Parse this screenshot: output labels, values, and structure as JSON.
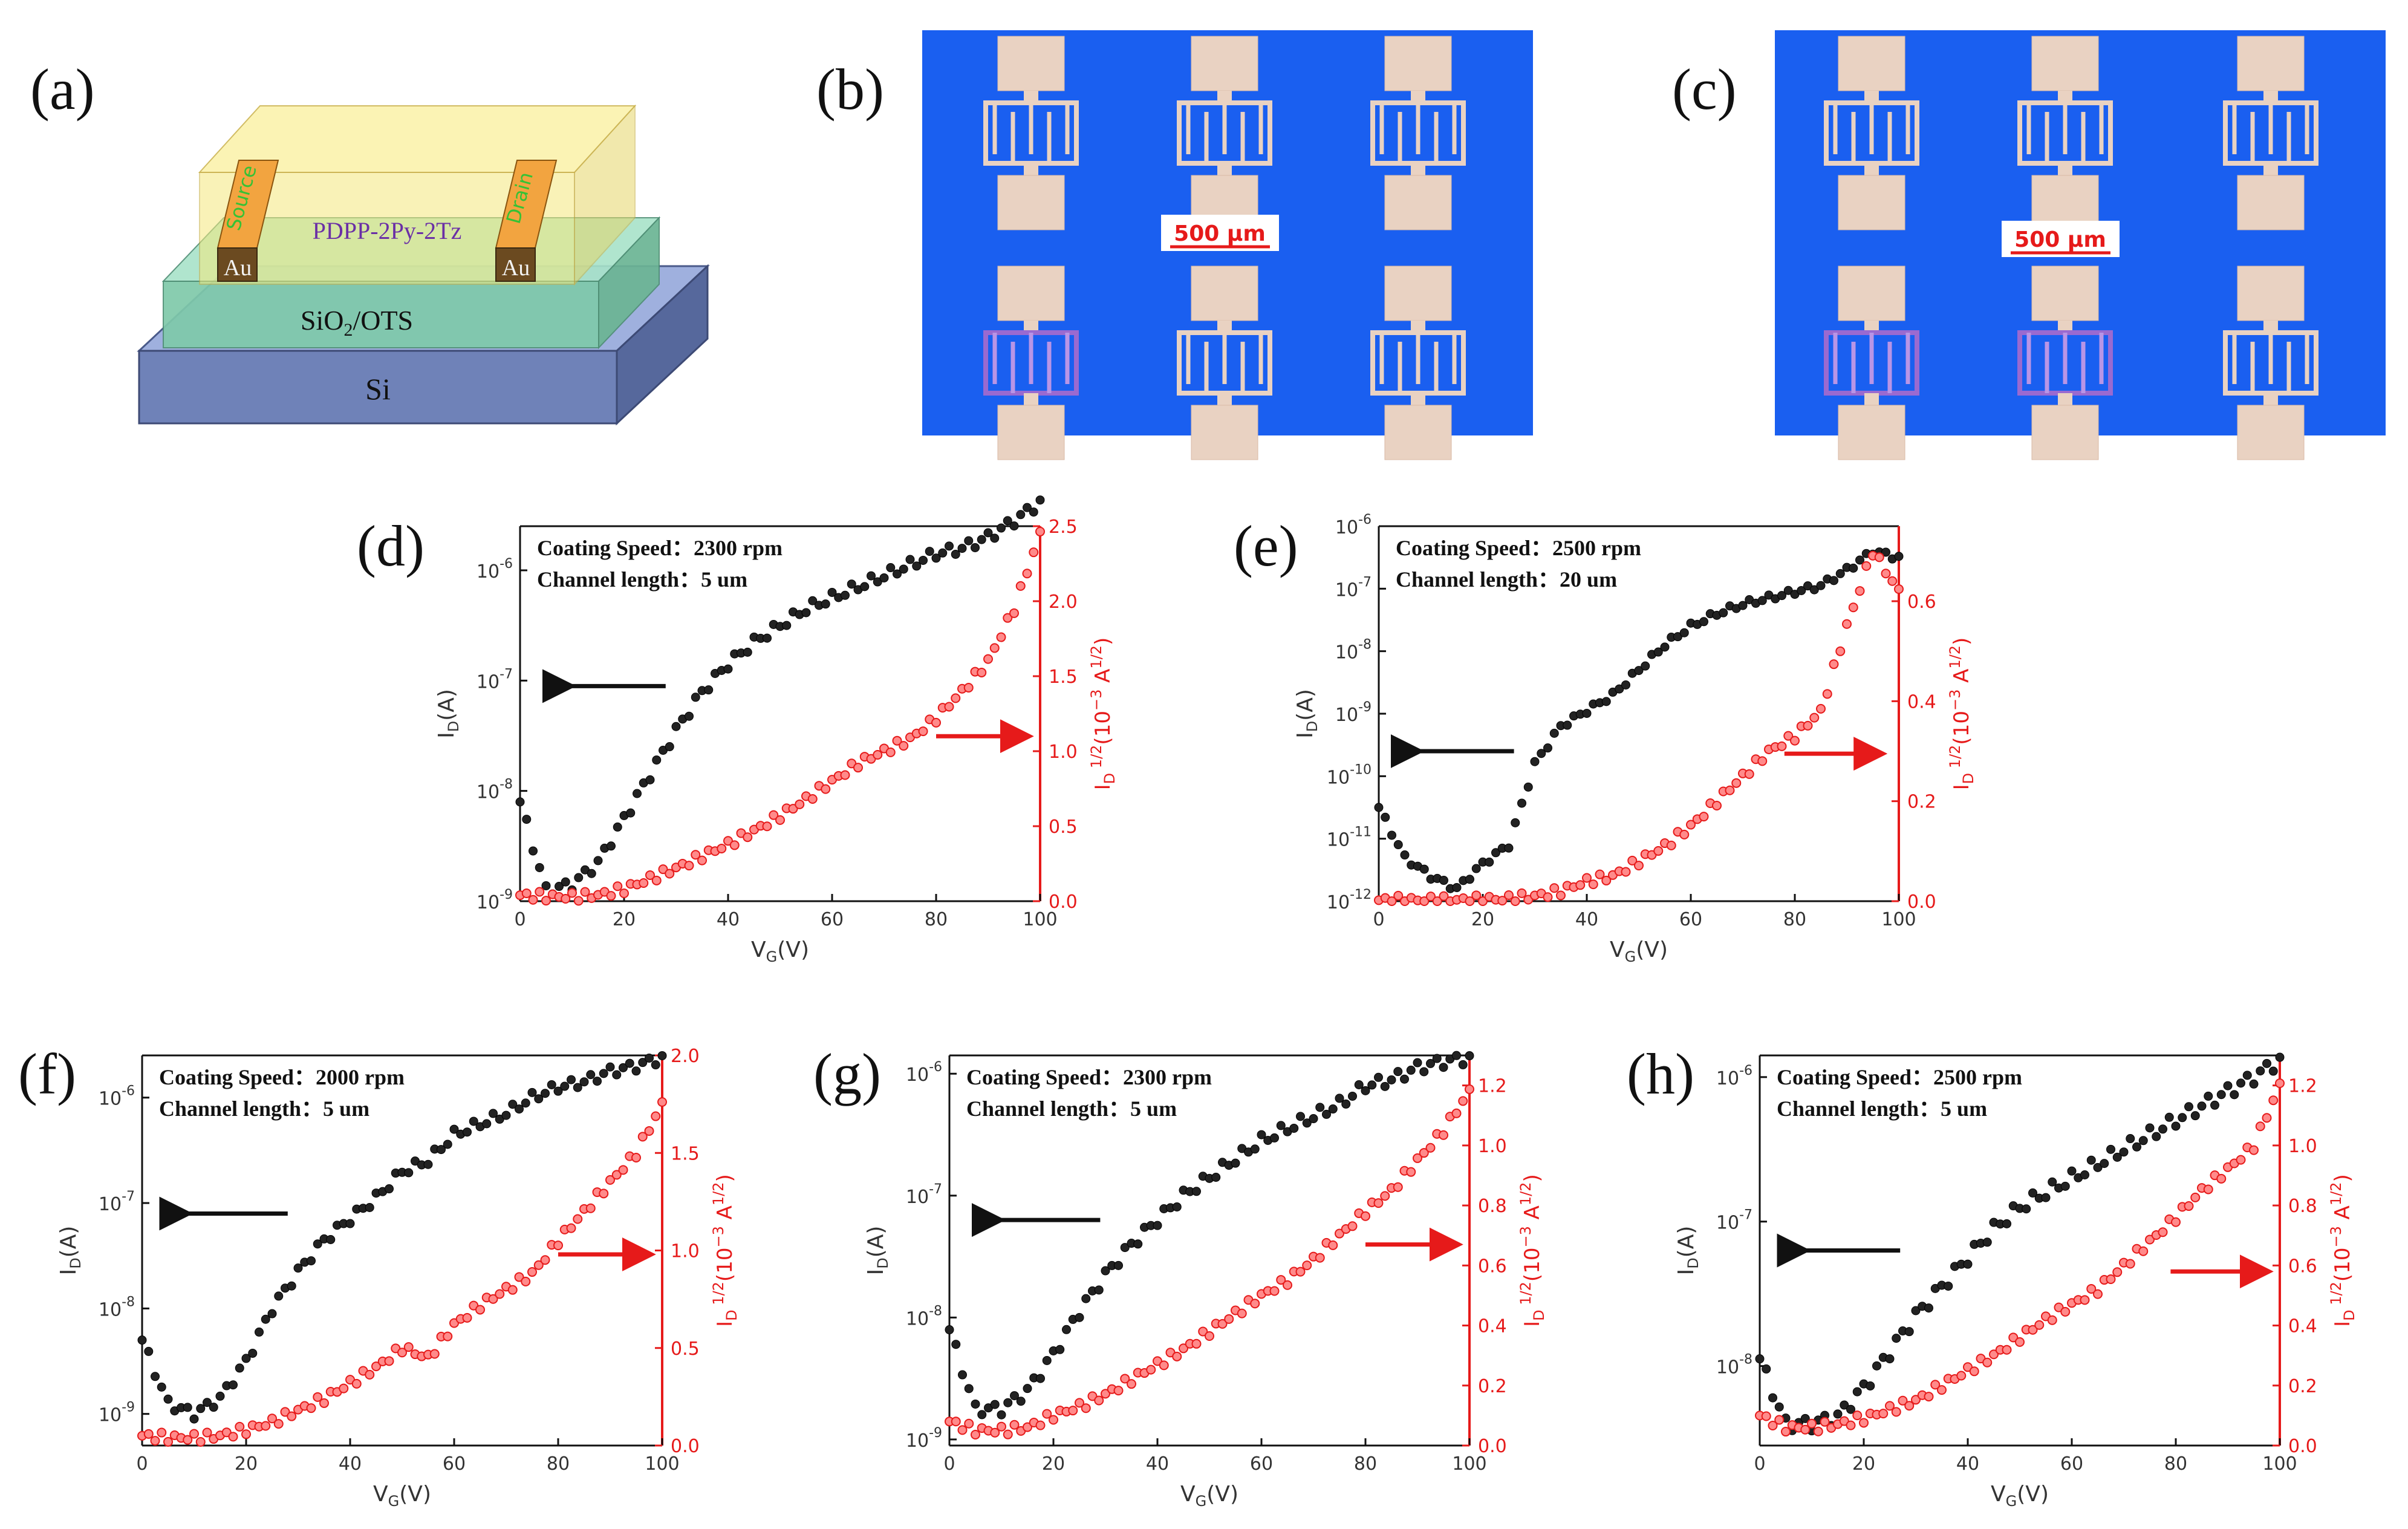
{
  "figure": {
    "panel_labels": [
      "(a)",
      "(b)",
      "(c)",
      "(d)",
      "(e)",
      "(f)",
      "(g)",
      "(h)"
    ]
  },
  "panel_a": {
    "layer_semiconductor": "PDPP-2Py-2Tz",
    "layer_dielectric_main": "SiO",
    "layer_dielectric_sub": "2",
    "layer_dielectric_tail": "/OTS",
    "layer_substrate": "Si",
    "electrode_left": "Source",
    "electrode_right": "Drain",
    "electrode_material_left": "Au",
    "electrode_material_right": "Au",
    "colors": {
      "semiconductor": "#f7e88a",
      "dielectric": "#8fd3b8",
      "substrate": "#7f93c9",
      "gold": "#d88a20"
    }
  },
  "panel_b": {
    "scale_bar": "500 μm",
    "background": "#1a5ff0"
  },
  "panel_c": {
    "scale_bar": "500 μm",
    "background": "#1a5ff0"
  },
  "chart_data": [
    {
      "id": "d",
      "type": "scatter",
      "annotation_line1": "Coating Speed：2300 rpm",
      "annotation_line2": "Channel length：5 um",
      "xlabel": "V_G(V)",
      "ylabel_left": "I_D(A)",
      "ylabel_right": "I_D^1/2(10^-3 A^1/2)",
      "xlim": [
        0,
        100
      ],
      "xticks": [
        0,
        20,
        40,
        60,
        80,
        100
      ],
      "ylim_left_log": [
        -9,
        -5.6
      ],
      "yticks_left": [
        -9,
        -8,
        -7,
        -6
      ],
      "ylim_right": [
        0,
        2.5
      ],
      "yticks_right": [
        0.0,
        0.5,
        1.0,
        1.5,
        2.0,
        2.5
      ],
      "left_series": {
        "name": "I_D",
        "color": "#111111",
        "x": [
          0,
          5,
          10,
          15,
          20,
          25,
          30,
          35,
          40,
          45,
          50,
          55,
          60,
          65,
          70,
          75,
          80,
          85,
          90,
          95,
          100
        ],
        "y_log10": [
          -8.1,
          -8.9,
          -8.85,
          -8.65,
          -8.25,
          -7.85,
          -7.45,
          -7.1,
          -6.85,
          -6.65,
          -6.5,
          -6.35,
          -6.25,
          -6.15,
          -6.05,
          -5.95,
          -5.85,
          -5.8,
          -5.7,
          -5.55,
          -5.38
        ]
      },
      "right_series": {
        "name": "I_D^1/2",
        "color": "#e61a1a",
        "x": [
          0,
          5,
          10,
          15,
          20,
          25,
          30,
          35,
          40,
          45,
          50,
          55,
          60,
          65,
          70,
          75,
          80,
          85,
          90,
          95,
          100
        ],
        "y": [
          0.04,
          0.03,
          0.03,
          0.04,
          0.08,
          0.15,
          0.22,
          0.3,
          0.38,
          0.47,
          0.57,
          0.68,
          0.8,
          0.92,
          1.0,
          1.08,
          1.22,
          1.4,
          1.6,
          1.95,
          2.45
        ]
      },
      "left_arrow": {
        "from": 28,
        "to": 10,
        "level": -7.05
      },
      "right_arrow": {
        "from": 80,
        "to": 98,
        "level": 1.1
      }
    },
    {
      "id": "e",
      "type": "scatter",
      "annotation_line1": "Coating Speed：2500 rpm",
      "annotation_line2": "Channel length：20 um",
      "xlabel": "V_G(V)",
      "ylabel_left": "I_D(A)",
      "ylabel_right": "I_D^1/2(10^-3 A^1/2)",
      "xlim": [
        0,
        100
      ],
      "xticks": [
        0,
        20,
        40,
        60,
        80,
        100
      ],
      "ylim_left_log": [
        -12,
        -6
      ],
      "yticks_left": [
        -12,
        -11,
        -10,
        -9,
        -8,
        -7,
        -6
      ],
      "ylim_right": [
        0,
        0.75
      ],
      "yticks_right": [
        0.0,
        0.2,
        0.4,
        0.6
      ],
      "left_series": {
        "name": "I_D",
        "color": "#111111",
        "x": [
          0,
          5,
          10,
          15,
          20,
          25,
          30,
          35,
          40,
          45,
          50,
          55,
          60,
          65,
          70,
          75,
          80,
          85,
          90,
          95,
          100
        ],
        "y_log10": [
          -10.5,
          -11.3,
          -11.6,
          -11.8,
          -11.4,
          -11.1,
          -9.8,
          -9.2,
          -8.95,
          -8.7,
          -8.3,
          -7.9,
          -7.6,
          -7.4,
          -7.25,
          -7.15,
          -7.05,
          -6.95,
          -6.7,
          -6.4,
          -6.5
        ]
      },
      "right_series": {
        "name": "I_D^1/2",
        "color": "#e61a1a",
        "x": [
          0,
          5,
          10,
          15,
          20,
          25,
          30,
          35,
          40,
          45,
          50,
          55,
          60,
          65,
          70,
          75,
          80,
          85,
          90,
          95,
          100
        ],
        "y": [
          0.002,
          0.002,
          0.002,
          0.002,
          0.003,
          0.005,
          0.01,
          0.02,
          0.04,
          0.05,
          0.08,
          0.11,
          0.15,
          0.2,
          0.25,
          0.3,
          0.33,
          0.38,
          0.55,
          0.7,
          0.62
        ]
      },
      "left_arrow": {
        "from": 26,
        "to": 8,
        "level": -9.6
      },
      "right_arrow": {
        "from": 78,
        "to": 97,
        "level": 0.295
      }
    },
    {
      "id": "f",
      "type": "scatter",
      "annotation_line1": "Coating Speed：2000 rpm",
      "annotation_line2": "Channel length：5 um",
      "xlabel": "V_G(V)",
      "ylabel_left": "I_D(A)",
      "ylabel_right": "I_D^1/2(10^-3 A^1/2)",
      "xlim": [
        0,
        100
      ],
      "xticks": [
        0,
        20,
        40,
        60,
        80,
        100
      ],
      "ylim_left_log": [
        -9.3,
        -5.6
      ],
      "yticks_left": [
        -9,
        -8,
        -7,
        -6
      ],
      "ylim_right": [
        0,
        2.0
      ],
      "yticks_right": [
        0.0,
        0.5,
        1.0,
        1.5,
        2.0
      ],
      "left_series": {
        "name": "I_D",
        "color": "#111111",
        "x": [
          0,
          5,
          10,
          15,
          20,
          25,
          30,
          35,
          40,
          45,
          50,
          55,
          60,
          65,
          70,
          75,
          80,
          85,
          90,
          95,
          100
        ],
        "y_log10": [
          -8.3,
          -8.9,
          -9.0,
          -8.85,
          -8.5,
          -8.0,
          -7.65,
          -7.35,
          -7.15,
          -6.95,
          -6.7,
          -6.6,
          -6.35,
          -6.25,
          -6.15,
          -6.0,
          -5.9,
          -5.85,
          -5.75,
          -5.7,
          -5.62
        ]
      },
      "right_series": {
        "name": "I_D^1/2",
        "color": "#e61a1a",
        "x": [
          0,
          5,
          10,
          15,
          20,
          25,
          30,
          35,
          40,
          45,
          50,
          55,
          60,
          65,
          70,
          75,
          80,
          85,
          90,
          95,
          100
        ],
        "y": [
          0.05,
          0.04,
          0.04,
          0.05,
          0.08,
          0.12,
          0.18,
          0.24,
          0.32,
          0.4,
          0.5,
          0.45,
          0.62,
          0.72,
          0.8,
          0.88,
          1.05,
          1.2,
          1.35,
          1.5,
          1.75
        ]
      },
      "left_arrow": {
        "from": 28,
        "to": 9,
        "level": -7.1
      },
      "right_arrow": {
        "from": 80,
        "to": 98,
        "level": 0.98
      }
    },
    {
      "id": "g",
      "type": "scatter",
      "annotation_line1": "Coating Speed：2300 rpm",
      "annotation_line2": "Channel length：5 um",
      "xlabel": "V_G(V)",
      "ylabel_left": "I_D(A)",
      "ylabel_right": "I_D^1/2(10^-3 A^1/2)",
      "xlim": [
        0,
        100
      ],
      "xticks": [
        0,
        20,
        40,
        60,
        80,
        100
      ],
      "ylim_left_log": [
        -9.05,
        -5.85
      ],
      "yticks_left": [
        -9,
        -8,
        -7,
        -6
      ],
      "ylim_right": [
        0,
        1.3
      ],
      "yticks_right": [
        0.0,
        0.2,
        0.4,
        0.6,
        0.8,
        1.0,
        1.2
      ],
      "left_series": {
        "name": "I_D",
        "color": "#111111",
        "x": [
          0,
          5,
          10,
          15,
          20,
          25,
          30,
          35,
          40,
          45,
          50,
          55,
          60,
          65,
          70,
          75,
          80,
          85,
          90,
          95,
          100
        ],
        "y_log10": [
          -8.1,
          -8.75,
          -8.75,
          -8.6,
          -8.3,
          -7.95,
          -7.65,
          -7.4,
          -7.2,
          -7.0,
          -6.85,
          -6.7,
          -6.55,
          -6.45,
          -6.35,
          -6.25,
          -6.1,
          -6.05,
          -5.95,
          -5.9,
          -5.87
        ]
      },
      "right_series": {
        "name": "I_D^1/2",
        "color": "#e61a1a",
        "x": [
          0,
          5,
          10,
          15,
          20,
          25,
          30,
          35,
          40,
          45,
          50,
          55,
          60,
          65,
          70,
          75,
          80,
          85,
          90,
          95,
          100
        ],
        "y": [
          0.08,
          0.05,
          0.05,
          0.06,
          0.1,
          0.13,
          0.17,
          0.22,
          0.27,
          0.32,
          0.38,
          0.44,
          0.5,
          0.55,
          0.62,
          0.7,
          0.78,
          0.85,
          0.95,
          1.05,
          1.18
        ]
      },
      "left_arrow": {
        "from": 29,
        "to": 10,
        "level": -7.2
      },
      "right_arrow": {
        "from": 80,
        "to": 98,
        "level": 0.67
      }
    },
    {
      "id": "h",
      "type": "scatter",
      "annotation_line1": "Coating Speed：2500 rpm",
      "annotation_line2": "Channel length：5 um",
      "xlabel": "V_G(V)",
      "ylabel_left": "I_D(A)",
      "ylabel_right": "I_D^1/2(10^-3 A^1/2)",
      "xlim": [
        0,
        100
      ],
      "xticks": [
        0,
        20,
        40,
        60,
        80,
        100
      ],
      "ylim_left_log": [
        -8.55,
        -5.85
      ],
      "yticks_left": [
        -8,
        -7,
        -6
      ],
      "ylim_right": [
        0,
        1.3
      ],
      "yticks_right": [
        0.0,
        0.2,
        0.4,
        0.6,
        0.8,
        1.0,
        1.2
      ],
      "left_series": {
        "name": "I_D",
        "color": "#111111",
        "x": [
          0,
          5,
          10,
          15,
          20,
          25,
          30,
          35,
          40,
          45,
          50,
          55,
          60,
          65,
          70,
          75,
          80,
          85,
          90,
          95,
          100
        ],
        "y_log10": [
          -7.95,
          -8.4,
          -8.4,
          -8.35,
          -8.15,
          -7.9,
          -7.65,
          -7.45,
          -7.25,
          -7.05,
          -6.9,
          -6.8,
          -6.7,
          -6.6,
          -6.5,
          -6.4,
          -6.3,
          -6.2,
          -6.1,
          -6.0,
          -5.88
        ]
      },
      "right_series": {
        "name": "I_D^1/2",
        "color": "#e61a1a",
        "x": [
          0,
          5,
          10,
          15,
          20,
          25,
          30,
          35,
          40,
          45,
          50,
          55,
          60,
          65,
          70,
          75,
          80,
          85,
          90,
          95,
          100
        ],
        "y": [
          0.1,
          0.06,
          0.06,
          0.07,
          0.09,
          0.12,
          0.15,
          0.2,
          0.25,
          0.3,
          0.36,
          0.42,
          0.47,
          0.52,
          0.6,
          0.68,
          0.76,
          0.85,
          0.92,
          1.0,
          1.2
        ]
      },
      "left_arrow": {
        "from": 27,
        "to": 9,
        "level": -7.2
      },
      "right_arrow": {
        "from": 79,
        "to": 98,
        "level": 0.58
      }
    }
  ]
}
